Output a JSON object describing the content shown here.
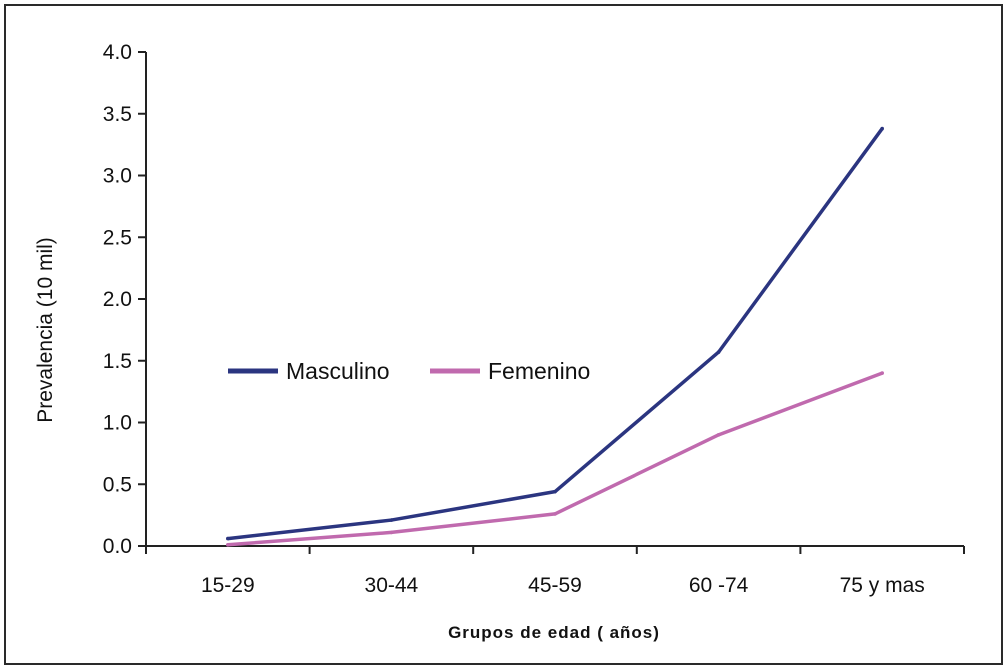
{
  "chart_data": {
    "type": "line",
    "categories": [
      "15-29",
      "30-44",
      "45-59",
      "60 -74",
      "75 y mas"
    ],
    "series": [
      {
        "name": "Masculino",
        "color": "#2b3580",
        "values": [
          0.06,
          0.21,
          0.44,
          1.57,
          3.38
        ]
      },
      {
        "name": "Femenino",
        "color": "#c06aae",
        "values": [
          0.01,
          0.11,
          0.26,
          0.9,
          1.4
        ]
      }
    ],
    "ylabel": "Prevalencia (10 mil)",
    "xlabel": "Grupos de edad ( años)",
    "ylim": [
      0,
      4.0
    ],
    "yticks": [
      "0.0",
      "0.5",
      "1.0",
      "1.5",
      "2.0",
      "2.5",
      "3.0",
      "3.5",
      "4.0"
    ],
    "grid": false,
    "legend_position": "middle-left"
  }
}
